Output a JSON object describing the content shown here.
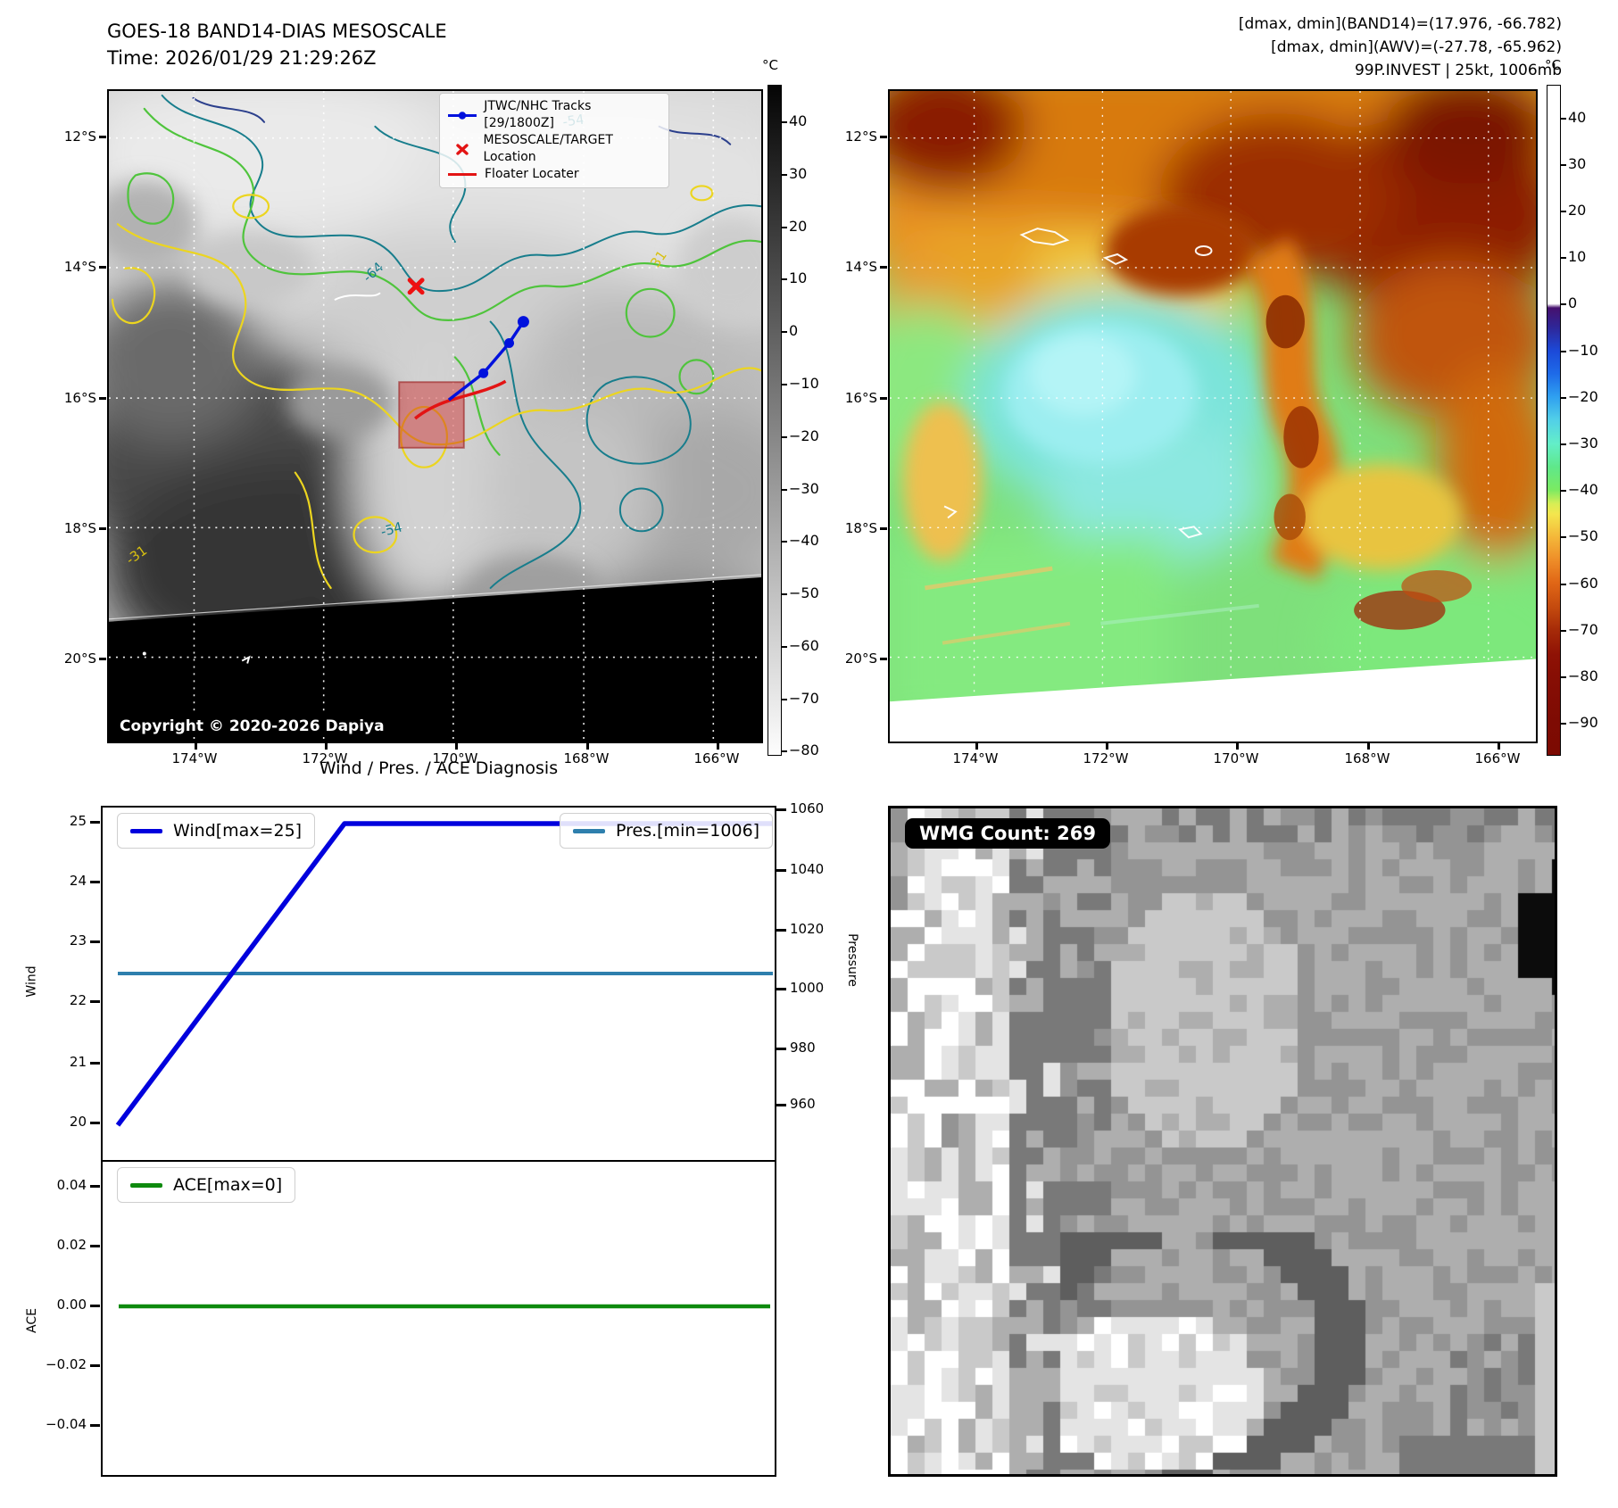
{
  "header_left": {
    "title": "GOES-18 BAND14-DIAS MESOSCALE",
    "time": "Time: 2026/01/29 21:29:26Z"
  },
  "header_right": {
    "line1": "[dmax, dmin](BAND14)=(17.976, -66.782)",
    "line2": "[dmax, dmin](AWV)=(-27.78, -65.962)",
    "line3": "99P.INVEST | 25kt, 1006mb"
  },
  "geo_axes": {
    "lat_ticks": [
      "12°S",
      "14°S",
      "16°S",
      "18°S",
      "20°S"
    ],
    "lon_ticks": [
      "174°W",
      "172°W",
      "170°W",
      "168°W",
      "166°W"
    ]
  },
  "band14_panel": {
    "legend": {
      "tracks": "JTWC/NHC Tracks [29/1800Z]",
      "target": "MESOSCALE/TARGET Location",
      "floater": "Floater Locater"
    },
    "copyright": "Copyright © 2020-2026 Dapiya",
    "contour_labels": {
      "c1": "-54",
      "c2": "-64",
      "c3": "-54",
      "c4": "31",
      "c5": "-31"
    },
    "colorbar": {
      "title": "°C",
      "ticks": [
        "40",
        "30",
        "20",
        "10",
        "0",
        "−10",
        "−20",
        "−30",
        "−40",
        "−50",
        "−60",
        "−70",
        "−80"
      ]
    }
  },
  "awv_panel": {
    "colorbar": {
      "title": "°C",
      "ticks": [
        "40",
        "30",
        "20",
        "10",
        "0",
        "−10",
        "−20",
        "−30",
        "−40",
        "−50",
        "−60",
        "−70",
        "−80",
        "−90"
      ]
    }
  },
  "wmg_panel": {
    "count_label": "WMG Count: 269"
  },
  "diagnosis": {
    "title": "Wind / Pres. / ACE Diagnosis",
    "wind_legend": "Wind[max=25]",
    "pres_legend": "Pres.[min=1006]",
    "ace_legend": "ACE[max=0]",
    "ylabel_wind": "Wind",
    "ylabel_pressure": "Pressure",
    "ylabel_ace": "ACE",
    "wind_ticks": [
      "25",
      "24",
      "23",
      "22",
      "21",
      "20"
    ],
    "pressure_ticks": [
      "1060",
      "1040",
      "1020",
      "1000",
      "980",
      "960"
    ],
    "ace_ticks": [
      "0.04",
      "0.02",
      "0.00",
      "−0.02",
      "−0.04"
    ]
  },
  "chart_data": [
    {
      "type": "line",
      "title": "Wind / Pres. / ACE Diagnosis",
      "series": [
        {
          "name": "Wind[max=25]",
          "yaxis": "left",
          "x_frac": [
            0.0,
            0.35,
            1.0
          ],
          "values": [
            20,
            25,
            25
          ],
          "color": "#0000dd"
        },
        {
          "name": "Pres.[min=1006]",
          "yaxis": "right",
          "x_frac": [
            0.0,
            1.0
          ],
          "values": [
            1006,
            1006
          ],
          "color": "#2e7fad"
        }
      ],
      "ylabel_left": "Wind",
      "ylabel_right": "Pressure",
      "yticks_left": [
        25,
        24,
        23,
        22,
        21,
        20
      ],
      "yticks_right": [
        1060,
        1040,
        1020,
        1000,
        980,
        960
      ],
      "ylim_left": [
        19.7,
        25.3
      ],
      "ylim_right": [
        947,
        1063
      ],
      "wind_max": 25,
      "pres_min": 1006,
      "legend_position": "upper left / upper right",
      "grid": false
    },
    {
      "type": "line",
      "series": [
        {
          "name": "ACE[max=0]",
          "x_frac": [
            0.0,
            1.0
          ],
          "values": [
            0,
            0
          ],
          "color": "#0e8a0e"
        }
      ],
      "ylabel": "ACE",
      "yticks": [
        0.04,
        0.02,
        0.0,
        -0.02,
        -0.04
      ],
      "ylim": [
        -0.055,
        0.049
      ],
      "ace_max": 0,
      "legend_position": "upper left",
      "grid": false
    }
  ]
}
